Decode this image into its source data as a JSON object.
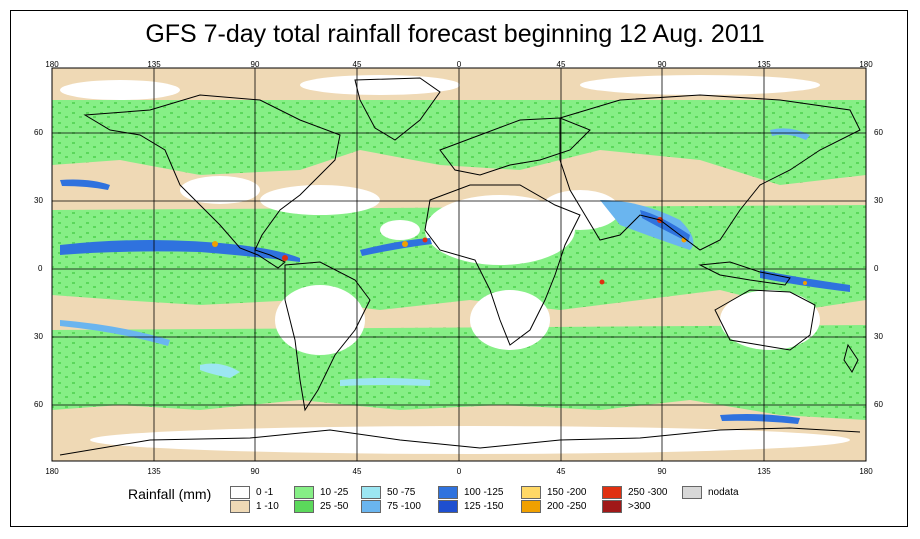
{
  "title": "GFS 7-day total rainfall forecast beginning 12 Aug. 2011",
  "lon_labels": [
    "180",
    "135",
    "90",
    "45",
    "0",
    "45",
    "90",
    "135",
    "180"
  ],
  "lat_labels": [
    "60",
    "30",
    "0",
    "30",
    "60"
  ],
  "legend": {
    "title": "Rainfall (mm)",
    "items": [
      {
        "label": "0 -1",
        "color": "#ffffff"
      },
      {
        "label": "1 -10",
        "color": "#efd9b5"
      },
      {
        "label": "10 -25",
        "color": "#86ef86"
      },
      {
        "label": "25 -50",
        "color": "#5bd85b"
      },
      {
        "label": "50 -75",
        "color": "#9ce6f2"
      },
      {
        "label": "75 -100",
        "color": "#6ab5ef"
      },
      {
        "label": "100 -125",
        "color": "#2f72de"
      },
      {
        "label": "125 -150",
        "color": "#1e4fd0"
      },
      {
        "label": "150 -200",
        "color": "#ffd866"
      },
      {
        "label": "200 -250",
        "color": "#f0a000"
      },
      {
        "label": "250 -300",
        "color": "#e03010"
      },
      {
        "label": ">300",
        "color": "#a01818"
      },
      {
        "label": "nodata",
        "color": "#d8d8d8"
      }
    ]
  }
}
